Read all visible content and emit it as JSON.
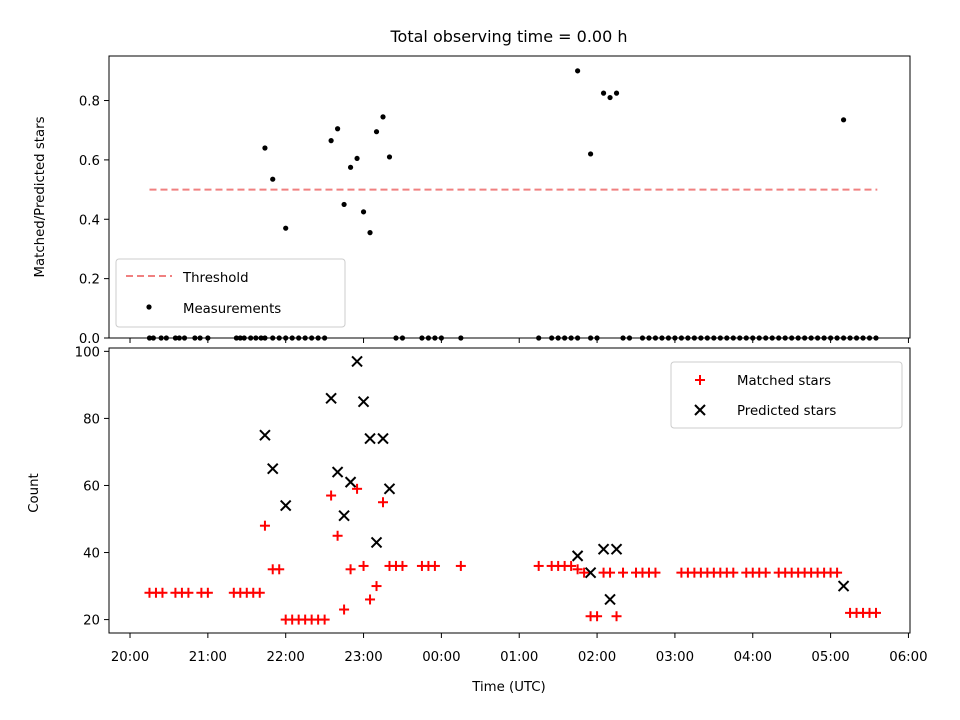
{
  "chart_data": [
    {
      "type": "scatter",
      "title": "Total observing time = 0.00 h",
      "xlabel": "",
      "ylabel": "Matched/Predicted stars",
      "xlim": [
        "20:00",
        "06:00"
      ],
      "ylim": [
        0,
        0.95
      ],
      "yticks": [
        "0.0",
        "0.2",
        "0.4",
        "0.6",
        "0.8"
      ],
      "legend_position": "lower-left",
      "threshold": {
        "name": "Threshold",
        "value": 0.5,
        "x_start": "20:15",
        "x_end": "05:36",
        "color": "#f08080"
      },
      "measurements": {
        "name": "Measurements",
        "color": "#000000",
        "x": [
          "21:44",
          "21:50",
          "22:00",
          "22:35",
          "22:40",
          "22:45",
          "22:50",
          "22:55",
          "23:00",
          "23:05",
          "23:10",
          "23:15",
          "23:20",
          "01:45",
          "01:55",
          "02:05",
          "02:10",
          "02:15",
          "05:10",
          "20:15",
          "20:18",
          "20:24",
          "20:28",
          "20:35",
          "20:38",
          "20:42",
          "20:50",
          "20:54",
          "21:00",
          "21:22",
          "21:25",
          "21:28",
          "21:33",
          "21:37",
          "21:41",
          "21:44",
          "21:50",
          "21:55",
          "22:00",
          "22:05",
          "22:10",
          "22:15",
          "22:20",
          "22:25",
          "22:30",
          "23:25",
          "23:30",
          "23:45",
          "23:50",
          "23:55",
          "00:00",
          "00:15",
          "01:15",
          "01:25",
          "01:30",
          "01:35",
          "01:40",
          "01:45",
          "01:55",
          "02:00",
          "02:20",
          "02:25",
          "02:35",
          "02:40",
          "02:45",
          "02:50",
          "02:55",
          "03:00",
          "03:05",
          "03:10",
          "03:15",
          "03:20",
          "03:25",
          "03:30",
          "03:35",
          "03:40",
          "03:45",
          "03:50",
          "03:55",
          "04:00",
          "04:05",
          "04:10",
          "04:15",
          "04:20",
          "04:25",
          "04:30",
          "04:35",
          "04:40",
          "04:45",
          "04:50",
          "04:55",
          "05:00",
          "05:05",
          "05:10",
          "05:15",
          "05:20",
          "05:25",
          "05:30",
          "05:35"
        ],
        "y": [
          0.64,
          0.535,
          0.37,
          0.665,
          0.705,
          0.45,
          0.575,
          0.605,
          0.425,
          0.355,
          0.695,
          0.745,
          0.61,
          0.9,
          0.62,
          0.825,
          0.81,
          0.825,
          0.735,
          0,
          0,
          0,
          0,
          0,
          0,
          0,
          0,
          0,
          0,
          0,
          0,
          0,
          0,
          0,
          0,
          0,
          0,
          0,
          0,
          0,
          0,
          0,
          0,
          0,
          0,
          0,
          0,
          0,
          0,
          0,
          0,
          0,
          0,
          0,
          0,
          0,
          0,
          0,
          0,
          0,
          0,
          0,
          0,
          0,
          0,
          0,
          0,
          0,
          0,
          0,
          0,
          0,
          0,
          0,
          0,
          0,
          0,
          0,
          0,
          0,
          0,
          0,
          0,
          0,
          0,
          0,
          0,
          0,
          0,
          0,
          0,
          0,
          0,
          0,
          0,
          0,
          0,
          0,
          0
        ]
      }
    },
    {
      "type": "scatter",
      "title": "",
      "xlabel": "Time (UTC)",
      "ylabel": "Count",
      "xlim": [
        "20:00",
        "06:00"
      ],
      "ylim": [
        16,
        101
      ],
      "xticks": [
        "20:00",
        "21:00",
        "22:00",
        "23:00",
        "00:00",
        "01:00",
        "02:00",
        "03:00",
        "04:00",
        "05:00",
        "06:00"
      ],
      "yticks": [
        "20",
        "40",
        "60",
        "80",
        "100"
      ],
      "legend_position": "upper-right",
      "series": [
        {
          "name": "Matched stars",
          "marker": "plus",
          "color": "#ff0000",
          "x": [
            "20:15",
            "20:20",
            "20:25",
            "20:35",
            "20:40",
            "20:45",
            "20:55",
            "21:00",
            "21:20",
            "21:25",
            "21:30",
            "21:35",
            "21:40",
            "21:44",
            "21:50",
            "21:55",
            "22:00",
            "22:05",
            "22:10",
            "22:15",
            "22:20",
            "22:25",
            "22:30",
            "22:35",
            "22:40",
            "22:45",
            "22:50",
            "22:55",
            "23:00",
            "23:05",
            "23:10",
            "23:15",
            "23:20",
            "23:25",
            "23:30",
            "23:45",
            "23:50",
            "23:55",
            "00:15",
            "01:15",
            "01:25",
            "01:30",
            "01:35",
            "01:40",
            "01:45",
            "01:50",
            "01:55",
            "02:00",
            "02:05",
            "02:10",
            "02:15",
            "02:20",
            "02:30",
            "02:35",
            "02:40",
            "02:45",
            "03:05",
            "03:10",
            "03:15",
            "03:20",
            "03:25",
            "03:30",
            "03:35",
            "03:40",
            "03:45",
            "03:55",
            "04:00",
            "04:05",
            "04:10",
            "04:20",
            "04:25",
            "04:30",
            "04:35",
            "04:40",
            "04:45",
            "04:50",
            "04:55",
            "05:00",
            "05:05",
            "05:15",
            "05:20",
            "05:25",
            "05:30",
            "05:35"
          ],
          "y": [
            28,
            28,
            28,
            28,
            28,
            28,
            28,
            28,
            28,
            28,
            28,
            28,
            28,
            48,
            35,
            35,
            20,
            20,
            20,
            20,
            20,
            20,
            20,
            57,
            45,
            23,
            35,
            59,
            36,
            26,
            30,
            55,
            36,
            36,
            36,
            36,
            36,
            36,
            36,
            36,
            36,
            36,
            36,
            36,
            35,
            34,
            21,
            21,
            34,
            34,
            21,
            34,
            34,
            34,
            34,
            34,
            34,
            34,
            34,
            34,
            34,
            34,
            34,
            34,
            34,
            34,
            34,
            34,
            34,
            34,
            34,
            34,
            34,
            34,
            34,
            34,
            34,
            34,
            34,
            22,
            22,
            22,
            22,
            22
          ]
        },
        {
          "name": "Predicted stars",
          "marker": "x",
          "color": "#000000",
          "x": [
            "21:44",
            "21:50",
            "22:00",
            "22:35",
            "22:40",
            "22:45",
            "22:50",
            "22:55",
            "23:00",
            "23:05",
            "23:10",
            "23:15",
            "23:20",
            "01:45",
            "01:55",
            "02:05",
            "02:10",
            "02:15",
            "05:10"
          ],
          "y": [
            75,
            65,
            54,
            86,
            64,
            51,
            61,
            97,
            85,
            74,
            43,
            74,
            59,
            39,
            34,
            41,
            26,
            41,
            30
          ]
        }
      ]
    }
  ]
}
